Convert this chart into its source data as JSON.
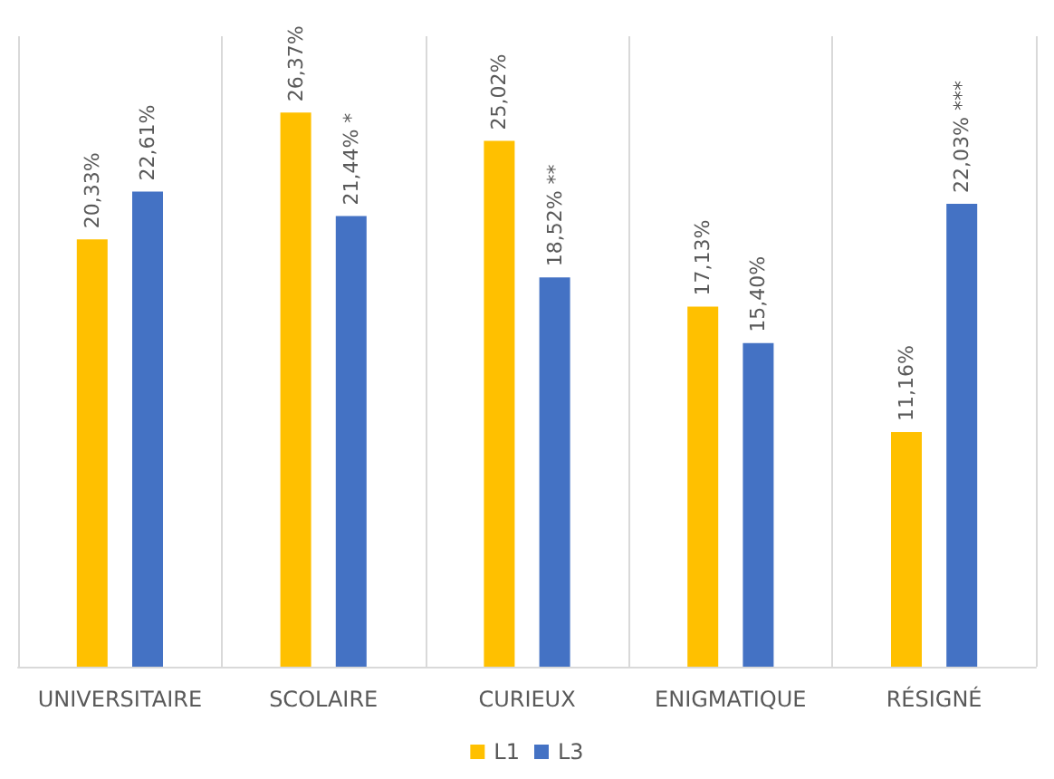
{
  "chart_data": {
    "type": "bar",
    "categories": [
      "UNIVERSITAIRE",
      "SCOLAIRE",
      "CURIEUX",
      "ENIGMATIQUE",
      "RÉSIGNÉ"
    ],
    "series": [
      {
        "name": "L1",
        "color": "#ffc000",
        "values": [
          20.33,
          26.37,
          25.02,
          17.13,
          11.16
        ],
        "value_labels": [
          "20,33%",
          "26,37%",
          "25,02%",
          "17,13%",
          "11,16%"
        ]
      },
      {
        "name": "L3",
        "color": "#4472c4",
        "values": [
          22.61,
          21.44,
          18.52,
          15.4,
          22.03
        ],
        "value_labels": [
          "22,61%",
          "21,44% *",
          "18,52% **",
          "15,40%",
          "22,03% ***"
        ]
      }
    ],
    "grid": "x",
    "legend": "bottom"
  }
}
